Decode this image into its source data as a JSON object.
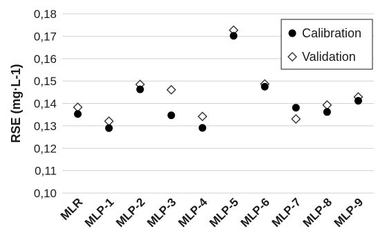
{
  "chart_data": {
    "type": "scatter",
    "title": "",
    "xlabel": "",
    "ylabel": "RSE (mg·L-1)",
    "ylim": [
      0.1,
      0.18
    ],
    "yticks": [
      "0,10",
      "0,11",
      "0,12",
      "0,13",
      "0,14",
      "0,15",
      "0,16",
      "0,17",
      "0,18"
    ],
    "grid": "horizontal",
    "legend_position": "top-right",
    "categories": [
      "MLR",
      "MLP-1",
      "MLP-2",
      "MLP-3",
      "MLP-4",
      "MLP-5",
      "MLP-6",
      "MLP-7",
      "MLP-8",
      "MLP-9"
    ],
    "series": [
      {
        "name": "Calibration",
        "marker": "filled-circle",
        "color": "#000000",
        "values": [
          0.1353,
          0.129,
          0.1463,
          0.1347,
          0.1291,
          0.1702,
          0.1475,
          0.1381,
          0.1362,
          0.1412
        ]
      },
      {
        "name": "Validation",
        "marker": "open-diamond",
        "color": "#000000",
        "values": [
          0.1383,
          0.1321,
          0.1485,
          0.1461,
          0.1342,
          0.1727,
          0.1487,
          0.1331,
          0.1393,
          0.1429
        ]
      }
    ]
  }
}
